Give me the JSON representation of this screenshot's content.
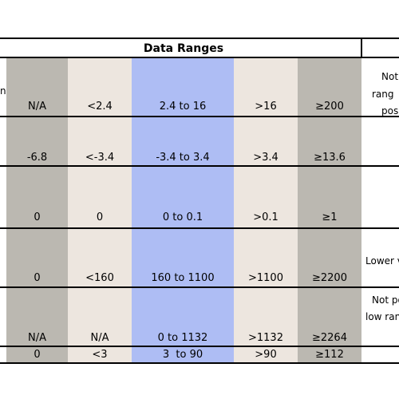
{
  "header": {
    "title": "Data Ranges"
  },
  "columns": [
    "a",
    "b",
    "c",
    "d",
    "e"
  ],
  "rows": [
    {
      "cells": [
        "N/A",
        "<2.4",
        "2.4 to 16",
        ">16",
        "≥200"
      ]
    },
    {
      "cells": [
        "-6.8",
        "<-3.4",
        "-3.4 to 3.4",
        ">3.4",
        "≥13.6"
      ]
    },
    {
      "cells": [
        "0",
        "0",
        "0 to 0.1",
        ">0.1",
        "≥1"
      ]
    },
    {
      "cells": [
        "0",
        "<160",
        "160 to 1100",
        ">1100",
        "≥2200"
      ]
    },
    {
      "cells": [
        "N/A",
        "N/A",
        "0 to 1132",
        ">1132",
        "≥2264"
      ]
    },
    {
      "cells": [
        "0",
        "<3",
        "3  to 90",
        ">90",
        "≥112"
      ]
    }
  ],
  "left_fragment": "n",
  "notes": {
    "row1_line1": "Not",
    "row1_line2": "rang",
    "row1_line3": "pos",
    "row4_line1": "Lower v",
    "row5_line1": "Not po",
    "row5_line2": "low ran"
  },
  "colors": {
    "gray": "#BBB8B1",
    "beige": "#EDE6DF",
    "blue": "#AEBDF4"
  }
}
